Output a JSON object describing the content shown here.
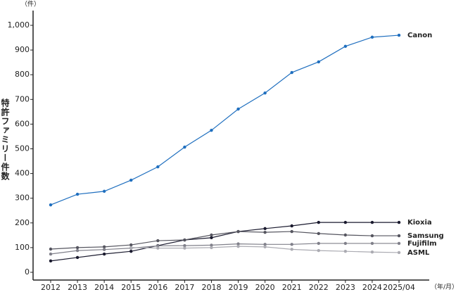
{
  "chart_data": {
    "type": "line",
    "y_label": "特許ファミリー件数",
    "y_unit": "（件）",
    "x_unit": "（年/月）",
    "categories": [
      "2012",
      "2013",
      "2014",
      "2015",
      "2016",
      "2017",
      "2018",
      "2019",
      "2020",
      "2021",
      "2022",
      "2023",
      "2024",
      "2025/04"
    ],
    "ylim": [
      0,
      1000
    ],
    "yticks": [
      0,
      100,
      200,
      300,
      400,
      500,
      600,
      700,
      800,
      900,
      {
        "value": 1000,
        "label": "1,000"
      }
    ],
    "series": [
      {
        "name": "Canon",
        "color": "#1f6fbf",
        "values": [
          273,
          316,
          328,
          373,
          427,
          507,
          575,
          661,
          726,
          809,
          852,
          915,
          952,
          960
        ]
      },
      {
        "name": "Kioxia",
        "color": "#1a1a2e",
        "values": [
          46,
          60,
          74,
          85,
          108,
          131,
          140,
          165,
          177,
          188,
          202,
          202,
          202,
          202
        ]
      },
      {
        "name": "Samsung",
        "color": "#55555f",
        "values": [
          94,
          100,
          103,
          111,
          128,
          131,
          151,
          165,
          162,
          165,
          157,
          151,
          148,
          148
        ]
      },
      {
        "name": "Fujifilm",
        "color": "#80808a",
        "values": [
          74,
          88,
          92,
          98,
          107,
          108,
          110,
          115,
          113,
          113,
          117,
          117,
          117,
          117
        ]
      },
      {
        "name": "ASML",
        "color": "#ababb2",
        "values": [
          null,
          null,
          null,
          100,
          98,
          98,
          100,
          105,
          103,
          93,
          88,
          85,
          82,
          80
        ]
      }
    ]
  }
}
